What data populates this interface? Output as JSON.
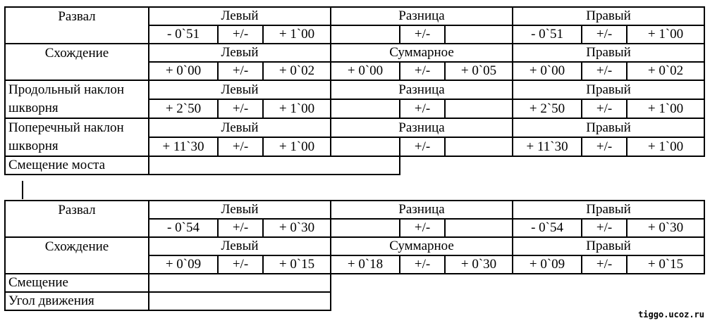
{
  "table1": {
    "rows": [
      {
        "param": "Развал",
        "headers": [
          "Левый",
          "Разница",
          "Правый"
        ],
        "values": [
          "- 0`51",
          "+/-",
          "+ 1`00",
          "",
          "+/-",
          "",
          "- 0`51",
          "+/-",
          "+ 1`00"
        ]
      },
      {
        "param": "Схождение",
        "headers": [
          "Левый",
          "Суммарное",
          "Правый"
        ],
        "values": [
          "+ 0`00",
          "+/-",
          "+ 0`02",
          "+ 0`00",
          "+/-",
          "+ 0`05",
          "+ 0`00",
          "+/-",
          "+ 0`02"
        ]
      },
      {
        "param_line1": "Продольный наклон",
        "param_line2": "шкворня",
        "headers": [
          "Левый",
          "Разница",
          "Правый"
        ],
        "values": [
          "+ 2`50",
          "+/-",
          "+ 1`00",
          "",
          "+/-",
          "",
          "+  2`50",
          "+/-",
          "+ 1`00"
        ]
      },
      {
        "param_line1": "Поперечный наклон",
        "param_line2": "шкворня",
        "headers": [
          "Левый",
          "Разница",
          "Правый"
        ],
        "values": [
          "+ 11`30",
          "+/-",
          "+ 1`00",
          "",
          "+/-",
          "",
          "+ 11`30",
          "+/-",
          "+ 1`00"
        ]
      }
    ],
    "bridge_offset_label": "Смещение  моста"
  },
  "table2": {
    "rows": [
      {
        "param": "Развал",
        "headers": [
          "Левый",
          "Разница",
          "Правый"
        ],
        "values": [
          "- 0`54",
          "+/-",
          "+ 0`30",
          "",
          "+/-",
          "",
          "- 0`54",
          "+/-",
          "+ 0`30"
        ]
      },
      {
        "param": "Схождение",
        "headers": [
          "Левый",
          "Суммарное",
          "Правый"
        ],
        "values": [
          "+ 0`09",
          "+/-",
          "+ 0`15",
          "+ 0`18",
          "+/-",
          "+ 0`30",
          "+ 0`09",
          "+/-",
          "+ 0`15"
        ]
      }
    ],
    "offset_label": "Смещение",
    "angle_label": "Угол движения"
  },
  "watermark": "tiggo.ucoz.ru"
}
